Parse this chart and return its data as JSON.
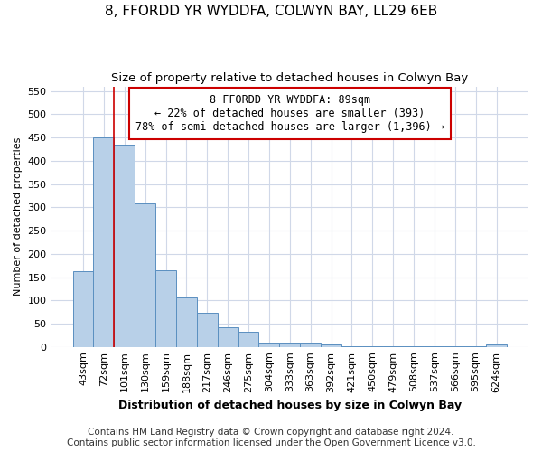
{
  "title": "8, FFORDD YR WYDDFA, COLWYN BAY, LL29 6EB",
  "subtitle": "Size of property relative to detached houses in Colwyn Bay",
  "xlabel": "Distribution of detached houses by size in Colwyn Bay",
  "ylabel": "Number of detached properties",
  "categories": [
    "43sqm",
    "72sqm",
    "101sqm",
    "130sqm",
    "159sqm",
    "188sqm",
    "217sqm",
    "246sqm",
    "275sqm",
    "304sqm",
    "333sqm",
    "363sqm",
    "392sqm",
    "421sqm",
    "450sqm",
    "479sqm",
    "508sqm",
    "537sqm",
    "566sqm",
    "595sqm",
    "624sqm"
  ],
  "values": [
    163,
    450,
    435,
    308,
    165,
    107,
    74,
    43,
    33,
    10,
    10,
    10,
    5,
    2,
    2,
    2,
    2,
    2,
    2,
    2,
    5
  ],
  "bar_color": "#b8d0e8",
  "bar_edge_color": "#5a8fc0",
  "property_line_x": 1.5,
  "property_line_color": "#cc0000",
  "annotation_text": "8 FFORDD YR WYDDFA: 89sqm\n← 22% of detached houses are smaller (393)\n78% of semi-detached houses are larger (1,396) →",
  "annotation_box_color": "#cc0000",
  "ylim": [
    0,
    560
  ],
  "yticks": [
    0,
    50,
    100,
    150,
    200,
    250,
    300,
    350,
    400,
    450,
    500,
    550
  ],
  "footer_line1": "Contains HM Land Registry data © Crown copyright and database right 2024.",
  "footer_line2": "Contains public sector information licensed under the Open Government Licence v3.0.",
  "bg_color": "#ffffff",
  "plot_bg_color": "#ffffff",
  "grid_color": "#d0d8e8",
  "title_fontsize": 11,
  "subtitle_fontsize": 9.5,
  "xlabel_fontsize": 9,
  "ylabel_fontsize": 8,
  "tick_fontsize": 8,
  "footer_fontsize": 7.5
}
